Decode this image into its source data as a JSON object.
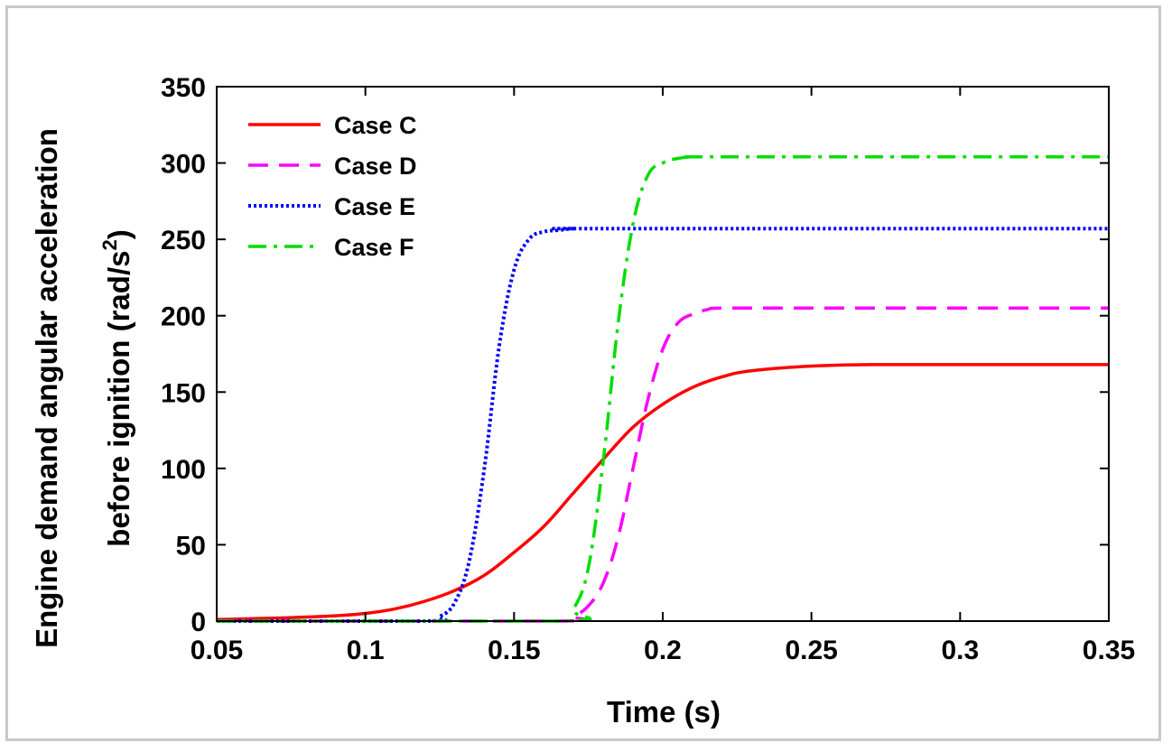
{
  "chart_data": {
    "type": "line",
    "title": "",
    "xlabel": "Time (s)",
    "ylabel_line1": "Engine demand angular acceleration",
    "ylabel_line2": "before ignition (rad/s",
    "ylabel_sup": "2",
    "ylabel_close": ")",
    "xlim": [
      0.05,
      0.35
    ],
    "ylim": [
      0,
      350
    ],
    "xticks": [
      0.05,
      0.1,
      0.15,
      0.2,
      0.25,
      0.3,
      0.35
    ],
    "xtick_labels": [
      "0.05",
      "0.1",
      "0.15",
      "0.2",
      "0.25",
      "0.3",
      "0.35"
    ],
    "yticks": [
      0,
      50,
      100,
      150,
      200,
      250,
      300,
      350
    ],
    "ytick_labels": [
      "0",
      "50",
      "100",
      "150",
      "200",
      "250",
      "300",
      "350"
    ],
    "grid": false,
    "legend_position": "top-left",
    "series": [
      {
        "name": "Case C",
        "color": "#ff0000",
        "style": "solid",
        "x": [
          0.05,
          0.07,
          0.09,
          0.1,
          0.11,
          0.12,
          0.13,
          0.14,
          0.15,
          0.16,
          0.17,
          0.18,
          0.19,
          0.2,
          0.21,
          0.22,
          0.23,
          0.25,
          0.27,
          0.3,
          0.35
        ],
        "y": [
          1,
          2,
          3.5,
          5,
          8,
          13,
          20,
          30,
          45,
          62,
          84,
          106,
          127,
          142,
          153,
          160,
          164,
          167,
          168,
          168,
          168
        ]
      },
      {
        "name": "Case D",
        "color": "#ff00ff",
        "style": "dashed",
        "x": [
          0.05,
          0.165,
          0.17,
          0.175,
          0.18,
          0.185,
          0.19,
          0.195,
          0.2,
          0.205,
          0.21,
          0.215,
          0.22,
          0.25,
          0.35
        ],
        "y": [
          0,
          0,
          3,
          10,
          25,
          55,
          100,
          145,
          178,
          195,
          201,
          204,
          205,
          205,
          205
        ]
      },
      {
        "name": "Case E",
        "color": "#0000ff",
        "style": "dotted",
        "x": [
          0.05,
          0.12,
          0.125,
          0.13,
          0.135,
          0.14,
          0.145,
          0.15,
          0.155,
          0.16,
          0.165,
          0.17,
          0.18,
          0.35
        ],
        "y": [
          0,
          0,
          3,
          12,
          40,
          100,
          180,
          230,
          250,
          255,
          256,
          257,
          257,
          257
        ]
      },
      {
        "name": "Case F",
        "color": "#00dd00",
        "style": "dashdot",
        "x": [
          0.05,
          0.165,
          0.17,
          0.175,
          0.18,
          0.185,
          0.19,
          0.195,
          0.2,
          0.205,
          0.21,
          0.22,
          0.35
        ],
        "y": [
          0,
          0,
          8,
          35,
          105,
          195,
          260,
          292,
          300,
          303,
          304,
          304,
          304
        ]
      }
    ]
  }
}
